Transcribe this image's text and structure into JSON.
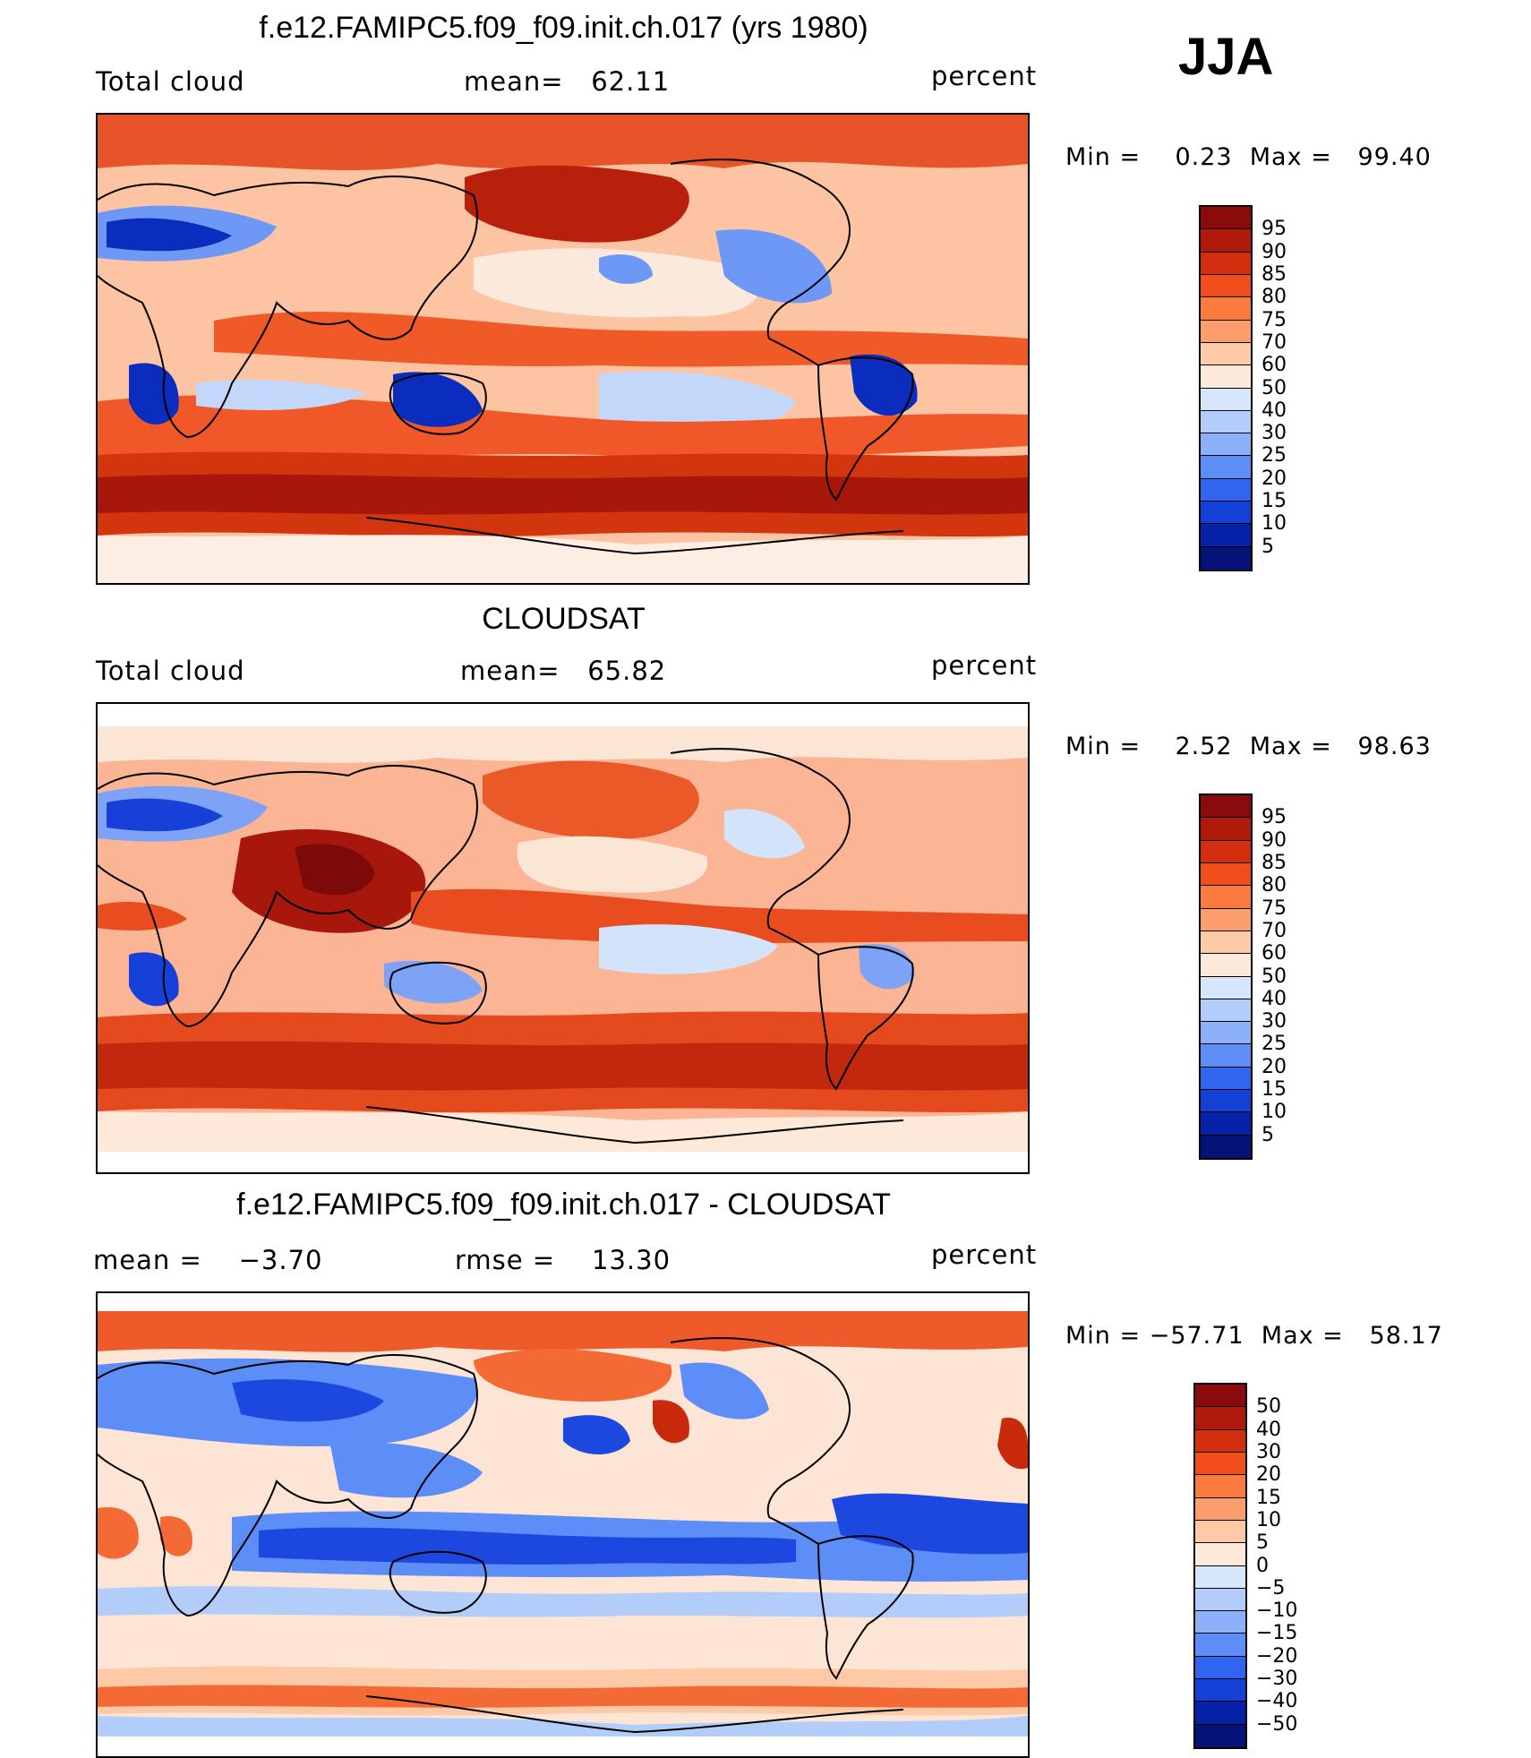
{
  "season": "JJA",
  "panels": [
    {
      "title": "f.e12.FAMIPC5.f09_f09.init.ch.017 (yrs 1980)",
      "left_label": "Total cloud",
      "center_label": "mean=   62.11",
      "right_label": "percent",
      "minmax": "Min =    0.23  Max =   99.40",
      "type": "model",
      "colorbar": {
        "labels": [
          "95",
          "90",
          "85",
          "80",
          "75",
          "70",
          "60",
          "50",
          "40",
          "30",
          "25",
          "20",
          "15",
          "10",
          "5"
        ],
        "colors": [
          "#8a0b0b",
          "#b01a0b",
          "#d32f0f",
          "#f24e1c",
          "#fb7a3e",
          "#fc9e6b",
          "#fdc9a6",
          "#fde9d9",
          "#d6e6fb",
          "#b2cdfa",
          "#8cb1fa",
          "#5d8df7",
          "#3265ef",
          "#1340d6",
          "#0522a8",
          "#051276"
        ]
      },
      "colors": {
        "ocean": "#fdc4a4",
        "land": "#fde4d2",
        "storm_belt": "#d3360f",
        "storm_core": "#a8170b",
        "itcz": "#ef5a26",
        "north_pacific": "#b8200c",
        "arctic": "#e8542a",
        "subtropic": "#fbe9dc",
        "stratus": "#f0582a",
        "clear_deep": "#0a2dbd",
        "clear_mid": "#6e98f5",
        "clear_light": "#c3d7fa",
        "antarctic": "#fdeee4"
      }
    },
    {
      "title": "CLOUDSAT",
      "left_label": "Total cloud",
      "center_label": "mean=   65.82",
      "right_label": "percent",
      "minmax": "Min =    2.52  Max =   98.63",
      "type": "obs",
      "colorbar": {
        "labels": [
          "95",
          "90",
          "85",
          "80",
          "75",
          "70",
          "60",
          "50",
          "40",
          "30",
          "25",
          "20",
          "15",
          "10",
          "5"
        ],
        "colors": [
          "#8a0b0b",
          "#b01a0b",
          "#d32f0f",
          "#f24e1c",
          "#fb7a3e",
          "#fc9e6b",
          "#fdc9a6",
          "#fde9d9",
          "#d6e6fb",
          "#b2cdfa",
          "#8cb1fa",
          "#5d8df7",
          "#3265ef",
          "#1340d6",
          "#0522a8",
          "#051276"
        ]
      },
      "colors": {
        "ocean": "#fcb594",
        "land": "#fde4d2",
        "storm_belt": "#e44a1d",
        "storm_core": "#c2280d",
        "monsoon": "#a8170b",
        "monsoon_core": "#7d0a0a",
        "itcz": "#e94c1f",
        "north_pacific": "#e95a28",
        "subtropic": "#fbe6d6",
        "clear_deep": "#1740d8",
        "clear_mid": "#7ea3f6",
        "clear_light": "#d3e3fb",
        "antarctic": "#fde8da"
      }
    },
    {
      "title": "f.e12.FAMIPC5.f09_f09.init.ch.017 - CLOUDSAT",
      "left_label": "mean =    −3.70",
      "center_label": "rmse =    13.30",
      "right_label": "percent",
      "minmax": "Min = −57.71  Max =   58.17",
      "type": "diff",
      "colorbar": {
        "labels": [
          "50",
          "40",
          "30",
          "20",
          "15",
          "10",
          "5",
          "0",
          "−5",
          "−10",
          "−15",
          "−20",
          "−30",
          "−40",
          "−50"
        ],
        "colors": [
          "#8a0b0b",
          "#b01a0b",
          "#d32f0f",
          "#f24e1c",
          "#fb7a3e",
          "#fc9e6b",
          "#fdc9a6",
          "#fde9d9",
          "#d6e6fb",
          "#b2cdfa",
          "#8cb1fa",
          "#5d8df7",
          "#3265ef",
          "#1340d6",
          "#0522a8",
          "#051276"
        ]
      },
      "colors": {
        "ocean": "#fde5d6",
        "land": "#d9e6fb",
        "neg_light": "#b2cdfa",
        "neg_mid": "#5d8df7",
        "neg_deep": "#1d48e0",
        "pos_light": "#fdc9a6",
        "pos_mid": "#f46a35",
        "pos_deep": "#c92a0c",
        "arctic": "#ee5a2a"
      }
    }
  ]
}
